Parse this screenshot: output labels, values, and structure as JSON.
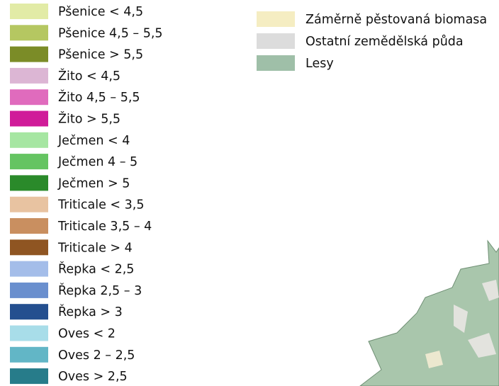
{
  "legend_left": [
    {
      "label": "Pšenice < 4,5",
      "color": "#e2eba6"
    },
    {
      "label": "Pšenice 4,5 – 5,5",
      "color": "#b5c761"
    },
    {
      "label": "Pšenice > 5,5",
      "color": "#7b8c27"
    },
    {
      "label": "Žito < 4,5",
      "color": "#dcb6d4"
    },
    {
      "label": "Žito 4,5 – 5,5",
      "color": "#e06bbd"
    },
    {
      "label": "Žito > 5,5",
      "color": "#d01c99"
    },
    {
      "label": "Ječmen < 4",
      "color": "#a6e6a2"
    },
    {
      "label": "Ječmen 4 – 5",
      "color": "#65c462"
    },
    {
      "label": "Ječmen > 5",
      "color": "#2a8a2a"
    },
    {
      "label": "Triticale < 3,5",
      "color": "#e8c3a1"
    },
    {
      "label": "Triticale 3,5 – 4",
      "color": "#c98f60"
    },
    {
      "label": "Triticale > 4",
      "color": "#8f5522"
    },
    {
      "label": "Řepka < 2,5",
      "color": "#a4bde9"
    },
    {
      "label": "Řepka 2,5 – 3",
      "color": "#6a8fce"
    },
    {
      "label": "Řepka > 3",
      "color": "#244f8f"
    },
    {
      "label": "Oves < 2",
      "color": "#a8dde9"
    },
    {
      "label": "Oves 2 – 2,5",
      "color": "#62b6c6"
    },
    {
      "label": "Oves > 2,5",
      "color": "#277c8a"
    }
  ],
  "legend_right": [
    {
      "label": "Záměrně pěstovaná biomasa",
      "color": "#f5edc2"
    },
    {
      "label": "Ostatní zemědělská půda",
      "color": "#dcdcdc"
    },
    {
      "label": "Lesy",
      "color": "#9fbfa8"
    }
  ]
}
